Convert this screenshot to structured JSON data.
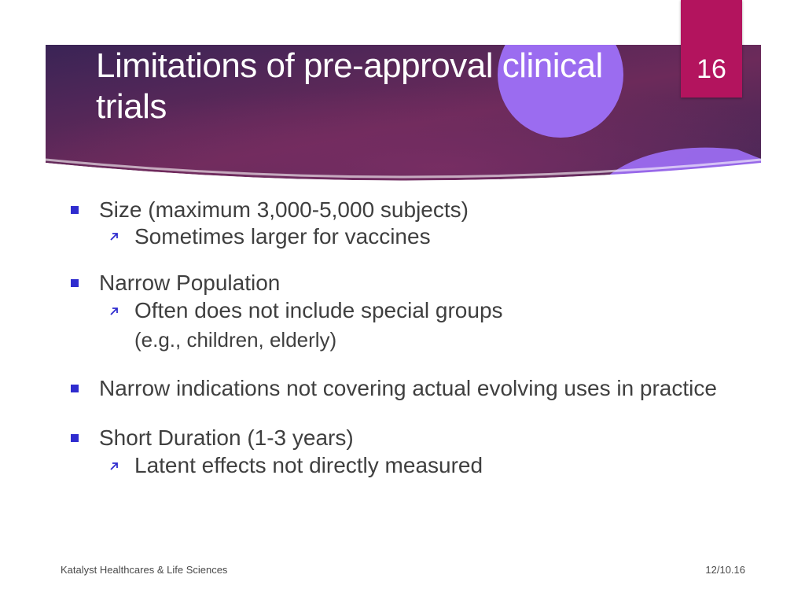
{
  "slide": {
    "title": "Limitations of pre-approval clinical trials",
    "page_number": "16"
  },
  "colors": {
    "header_dark": "#3a2456",
    "header_magenta": "#6c2a5a",
    "circle": "#9b6cf0",
    "page_tab": "#b3145e",
    "bullet": "#2f2ccf"
  },
  "bullets": [
    {
      "text": "Size (maximum 3,000-5,000 subjects)",
      "subs": [
        {
          "text": "Sometimes larger for vaccines"
        }
      ]
    },
    {
      "text": "Narrow Population",
      "subs": [
        {
          "text": "Often does not include special groups",
          "cont": "(e.g., children, elderly)"
        }
      ]
    },
    {
      "text": "Narrow indications not covering actual evolving uses in practice",
      "subs": []
    },
    {
      "text": "Short Duration (1-3 years)",
      "subs": [
        {
          "text": "Latent effects not directly measured"
        }
      ]
    }
  ],
  "footer": {
    "left": "Katalyst Healthcares & Life Sciences",
    "right": "12/10.16"
  },
  "icons": {
    "bullet": "square-bullet-icon",
    "sub_bullet": "arrow-up-right-icon"
  }
}
